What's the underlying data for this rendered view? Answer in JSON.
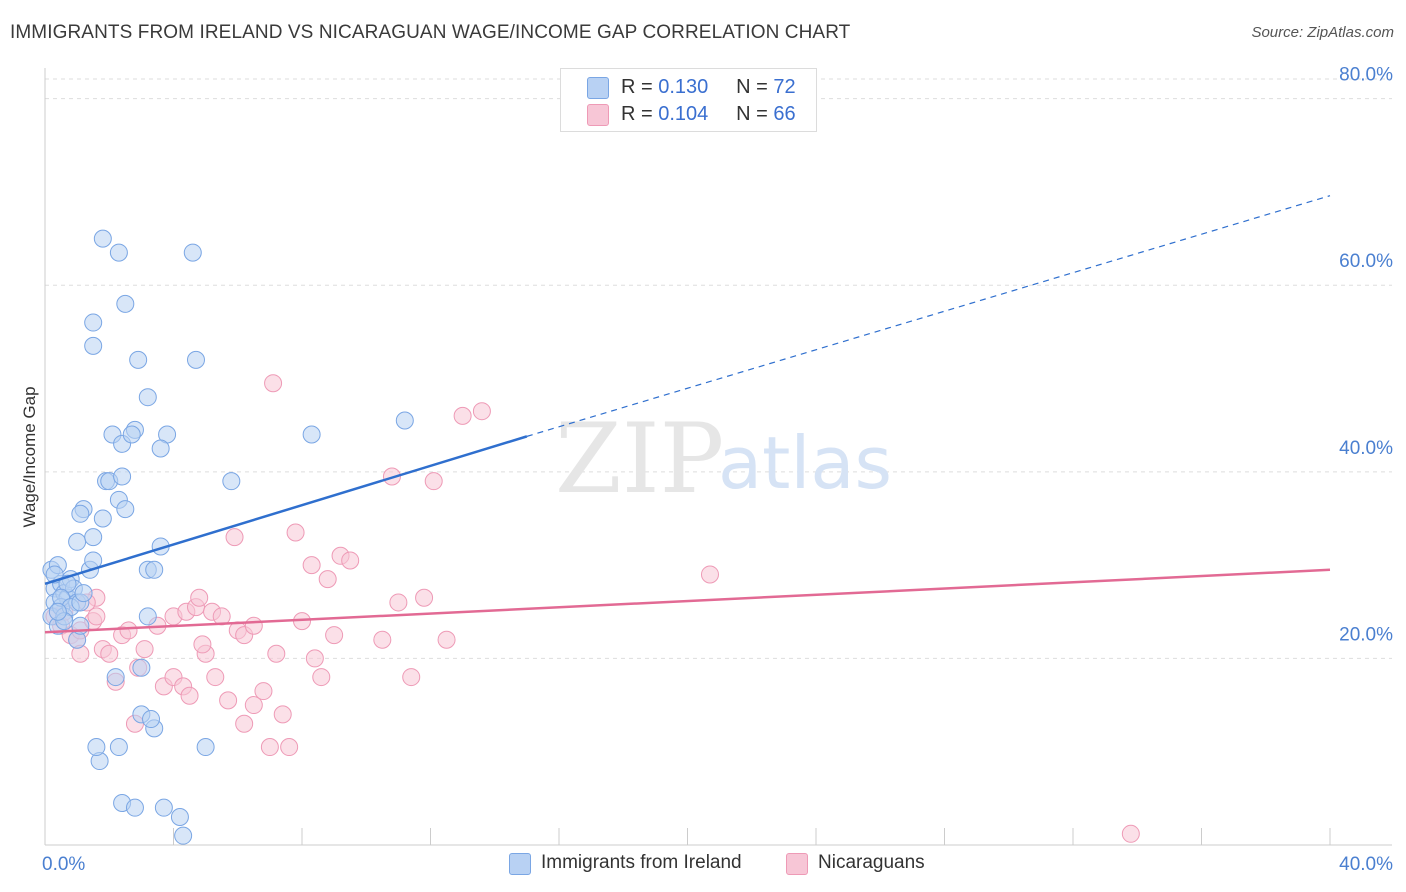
{
  "header": {
    "title": "IMMIGRANTS FROM IRELAND VS NICARAGUAN WAGE/INCOME GAP CORRELATION CHART",
    "source": "Source: ZipAtlas.com"
  },
  "legend": {
    "rows": [
      {
        "r_label": "R =",
        "r_value": "0.130",
        "n_label": "N =",
        "n_value": "72"
      },
      {
        "r_label": "R =",
        "r_value": "0.104",
        "n_label": "N =",
        "n_value": "66"
      }
    ]
  },
  "bottom_legend": {
    "series1": "Immigrants from Ireland",
    "series2": "Nicaraguans"
  },
  "watermark": {
    "zip": "ZIP",
    "atlas": "atlas"
  },
  "colors": {
    "blue_fill": "#b8d1f3",
    "blue_stroke": "#7aa6e4",
    "blue_line": "#2f6fce",
    "pink_fill": "#f7c6d6",
    "pink_stroke": "#ee9ab6",
    "pink_line": "#e26a94"
  },
  "chart_data": {
    "type": "scatter",
    "title": "IMMIGRANTS FROM IRELAND VS NICARAGUAN WAGE/INCOME GAP CORRELATION CHART",
    "xlabel": "",
    "ylabel": "Wage/Income Gap",
    "xlim": [
      0,
      40
    ],
    "ylim": [
      0,
      82
    ],
    "x_tick_labels": [
      "0.0%",
      "40.0%"
    ],
    "y_ticks": [
      20,
      40,
      60,
      80
    ],
    "y_tick_labels": [
      "20.0%",
      "40.0%",
      "60.0%",
      "80.0%"
    ],
    "series": [
      {
        "name": "Immigrants from Ireland",
        "R": 0.13,
        "N": 72,
        "trend": {
          "x0": 0,
          "y0": 28.0,
          "x1": 15.0,
          "y1": 43.8,
          "dash_to_x": 40,
          "dash_to_y": 69.6
        },
        "points": [
          [
            0.2,
            29.5
          ],
          [
            0.3,
            27.5
          ],
          [
            0.4,
            30.0
          ],
          [
            0.3,
            26.0
          ],
          [
            0.2,
            24.5
          ],
          [
            0.5,
            28.0
          ],
          [
            0.6,
            27.0
          ],
          [
            0.7,
            26.5
          ],
          [
            0.5,
            25.5
          ],
          [
            0.8,
            28.5
          ],
          [
            0.4,
            23.5
          ],
          [
            0.6,
            24.5
          ],
          [
            0.9,
            27.5
          ],
          [
            1.0,
            26.0
          ],
          [
            0.3,
            29.0
          ],
          [
            0.7,
            28.0
          ],
          [
            0.5,
            26.5
          ],
          [
            0.8,
            25.5
          ],
          [
            1.1,
            26.0
          ],
          [
            1.2,
            27.0
          ],
          [
            1.0,
            22.0
          ],
          [
            1.1,
            23.5
          ],
          [
            0.6,
            24.0
          ],
          [
            0.4,
            25.0
          ],
          [
            1.4,
            29.5
          ],
          [
            1.5,
            30.5
          ],
          [
            1.0,
            32.5
          ],
          [
            1.2,
            36.0
          ],
          [
            1.1,
            35.5
          ],
          [
            1.5,
            33.0
          ],
          [
            1.8,
            35.0
          ],
          [
            1.9,
            39.0
          ],
          [
            2.0,
            39.0
          ],
          [
            2.3,
            37.0
          ],
          [
            2.5,
            36.0
          ],
          [
            2.4,
            39.5
          ],
          [
            2.1,
            44.0
          ],
          [
            2.4,
            43.0
          ],
          [
            2.8,
            44.5
          ],
          [
            2.7,
            44.0
          ],
          [
            3.2,
            29.5
          ],
          [
            3.4,
            29.5
          ],
          [
            3.6,
            32.0
          ],
          [
            3.8,
            44.0
          ],
          [
            3.6,
            42.5
          ],
          [
            3.2,
            48.0
          ],
          [
            2.9,
            52.0
          ],
          [
            4.7,
            52.0
          ],
          [
            1.5,
            53.5
          ],
          [
            1.5,
            56.0
          ],
          [
            2.5,
            58.0
          ],
          [
            1.8,
            65.0
          ],
          [
            2.3,
            63.5
          ],
          [
            4.6,
            63.5
          ],
          [
            5.8,
            39.0
          ],
          [
            8.3,
            44.0
          ],
          [
            11.2,
            45.5
          ],
          [
            1.7,
            9.0
          ],
          [
            1.6,
            10.5
          ],
          [
            2.3,
            10.5
          ],
          [
            3.4,
            12.5
          ],
          [
            3.0,
            14.0
          ],
          [
            3.3,
            13.5
          ],
          [
            5.0,
            10.5
          ],
          [
            2.4,
            4.5
          ],
          [
            2.8,
            4.0
          ],
          [
            3.7,
            4.0
          ],
          [
            4.2,
            3.0
          ],
          [
            4.3,
            1.0
          ],
          [
            2.2,
            18.0
          ],
          [
            3.0,
            19.0
          ],
          [
            3.2,
            24.5
          ]
        ]
      },
      {
        "name": "Nicaraguans",
        "R": 0.104,
        "N": 66,
        "trend": {
          "x0": 0,
          "y0": 22.8,
          "x1": 40,
          "y1": 29.5
        },
        "points": [
          [
            0.3,
            24.5
          ],
          [
            0.5,
            23.5
          ],
          [
            0.6,
            25.0
          ],
          [
            0.8,
            22.5
          ],
          [
            1.0,
            22.0
          ],
          [
            1.1,
            23.0
          ],
          [
            1.5,
            24.0
          ],
          [
            1.6,
            26.5
          ],
          [
            1.1,
            20.5
          ],
          [
            1.8,
            21.0
          ],
          [
            2.0,
            20.5
          ],
          [
            2.4,
            22.5
          ],
          [
            2.6,
            23.0
          ],
          [
            2.2,
            17.5
          ],
          [
            2.9,
            19.0
          ],
          [
            3.5,
            23.5
          ],
          [
            3.7,
            17.0
          ],
          [
            4.0,
            18.0
          ],
          [
            4.3,
            17.0
          ],
          [
            4.5,
            16.0
          ],
          [
            4.0,
            24.5
          ],
          [
            4.4,
            25.0
          ],
          [
            4.7,
            25.5
          ],
          [
            4.8,
            26.5
          ],
          [
            5.2,
            25.0
          ],
          [
            5.5,
            24.5
          ],
          [
            5.0,
            20.5
          ],
          [
            5.3,
            18.0
          ],
          [
            5.7,
            15.5
          ],
          [
            6.0,
            23.0
          ],
          [
            6.2,
            22.5
          ],
          [
            6.5,
            23.5
          ],
          [
            6.8,
            16.5
          ],
          [
            6.2,
            13.0
          ],
          [
            7.0,
            10.5
          ],
          [
            7.6,
            10.5
          ],
          [
            7.4,
            14.0
          ],
          [
            7.2,
            20.5
          ],
          [
            8.0,
            24.0
          ],
          [
            8.4,
            20.0
          ],
          [
            8.6,
            18.0
          ],
          [
            8.8,
            28.5
          ],
          [
            8.3,
            30.0
          ],
          [
            9.2,
            31.0
          ],
          [
            9.5,
            30.5
          ],
          [
            7.8,
            33.5
          ],
          [
            5.9,
            33.0
          ],
          [
            7.1,
            49.5
          ],
          [
            10.5,
            22.0
          ],
          [
            11.0,
            26.0
          ],
          [
            11.8,
            26.5
          ],
          [
            11.4,
            18.0
          ],
          [
            12.5,
            22.0
          ],
          [
            10.8,
            39.5
          ],
          [
            12.1,
            39.0
          ],
          [
            13.0,
            46.0
          ],
          [
            13.6,
            46.5
          ],
          [
            20.7,
            29.0
          ],
          [
            33.8,
            1.2
          ],
          [
            2.8,
            13.0
          ],
          [
            1.6,
            24.5
          ],
          [
            4.9,
            21.5
          ],
          [
            6.5,
            15.0
          ],
          [
            9.0,
            22.5
          ],
          [
            3.1,
            21.0
          ],
          [
            1.3,
            26.0
          ]
        ]
      }
    ]
  }
}
